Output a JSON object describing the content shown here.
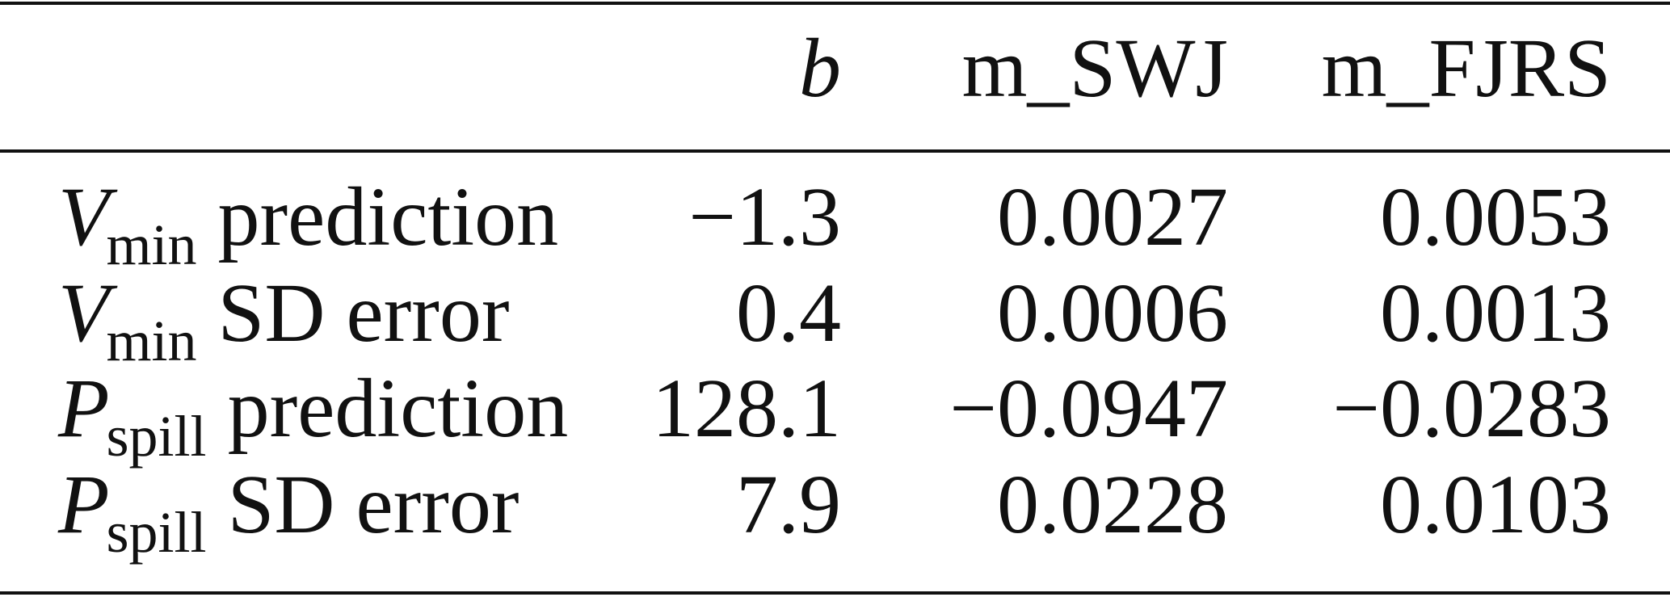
{
  "table": {
    "header": [
      {
        "text": "b",
        "italic": true
      },
      {
        "text": "m_SWJ"
      },
      {
        "text": "m_FJRS"
      }
    ],
    "rows": [
      {
        "label": {
          "symbol": "V",
          "subscript": "min",
          "text": "prediction"
        },
        "cells": [
          "−1.3",
          "0.0027",
          "0.0053"
        ]
      },
      {
        "label": {
          "symbol": "V",
          "subscript": "min",
          "text": "SD error"
        },
        "cells": [
          "0.4",
          "0.0006",
          "0.0013"
        ]
      },
      {
        "label": {
          "symbol": "P",
          "subscript": "spill",
          "text": "prediction"
        },
        "cells": [
          "128.1",
          "−0.0947",
          "−0.0283"
        ]
      },
      {
        "label": {
          "symbol": "P",
          "subscript": "spill",
          "text": "SD error"
        },
        "cells": [
          "7.9",
          "0.0228",
          "0.0103"
        ]
      }
    ]
  }
}
